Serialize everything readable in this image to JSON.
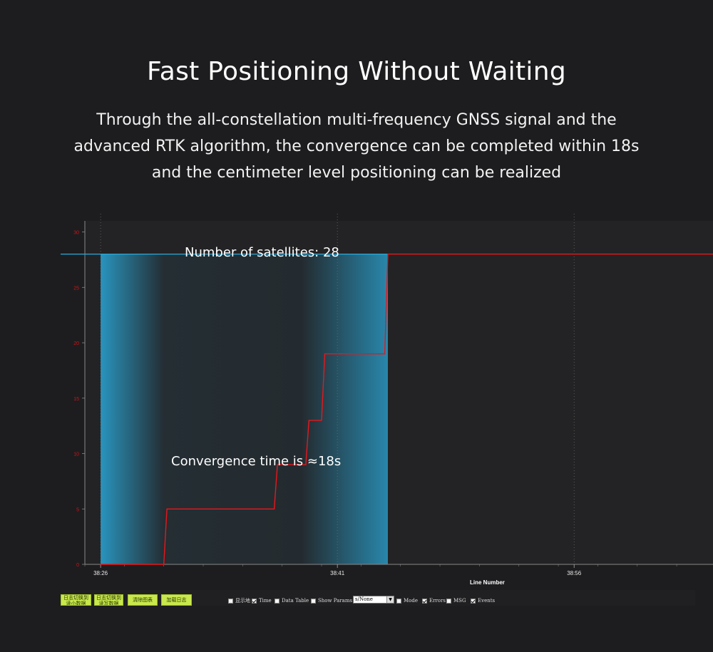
{
  "headline": "Fast Positioning Without Waiting",
  "subtitle_lines": [
    "Through the all-constellation multi-frequency GNSS signal and the",
    "advanced RTK algorithm, the convergence can be completed within 18s",
    "and the centimeter level positioning can be realized"
  ],
  "colors": {
    "background": "#1d1d1f",
    "line": "#e8171c",
    "highlight": "#2aa8d8",
    "axis_text_red": "#d0141a",
    "button_green": "#c8e84d"
  },
  "annotations": {
    "satellites": "Number of satellites: 28",
    "convergence": "Convergence time is ≈18s"
  },
  "chart_data": {
    "type": "line",
    "xlabel": "Line Number",
    "ylabel": "",
    "x_ticks": [
      "38:26",
      "38:41",
      "38:56"
    ],
    "x_tick_values": [
      0,
      15,
      30
    ],
    "y_ticks": [
      0,
      5,
      10,
      15,
      20,
      25,
      30
    ],
    "xlim": [
      -1,
      38.8
    ],
    "ylim": [
      0,
      31
    ],
    "grid": "vertical dotted",
    "series": [
      {
        "points": [
          [
            0,
            0
          ],
          [
            4,
            0
          ],
          [
            4.2,
            5
          ],
          [
            11,
            5
          ],
          [
            11.2,
            9
          ],
          [
            13,
            9
          ],
          [
            13.2,
            13
          ],
          [
            14,
            13
          ],
          [
            14.2,
            19
          ],
          [
            18,
            19
          ],
          [
            18.2,
            28
          ],
          [
            38.8,
            28
          ]
        ]
      }
    ],
    "highlight_x_range": [
      0,
      18.2
    ]
  },
  "toolbar": {
    "buttons": [
      "日志切换到\n读小数据",
      "日志切换到\n读写数据",
      "清除图表",
      "加载日志"
    ],
    "checkboxes": [
      {
        "label": "显示地",
        "checked": false
      },
      {
        "label": "Time",
        "checked": true
      },
      {
        "label": "Data Table",
        "checked": false
      },
      {
        "label": "Show Params",
        "checked": false
      },
      {
        "label": "Mode",
        "checked": false
      },
      {
        "label": "Errors",
        "checked": true
      },
      {
        "label": "MSG",
        "checked": false
      },
      {
        "label": "Events",
        "checked": true
      }
    ],
    "select_value": "s/None"
  }
}
